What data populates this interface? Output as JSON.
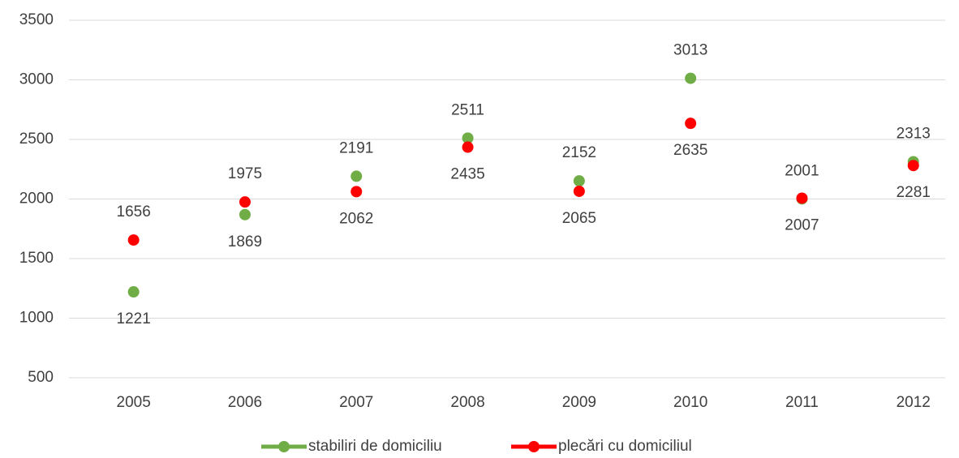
{
  "chart_data": {
    "type": "line",
    "categories": [
      "2005",
      "2006",
      "2007",
      "2008",
      "2009",
      "2010",
      "2011",
      "2012"
    ],
    "series": [
      {
        "name": "stabiliri de domiciliu",
        "color": "#70ad47",
        "values": [
          1221,
          1869,
          2191,
          2511,
          2152,
          3013,
          2001,
          2313
        ]
      },
      {
        "name": "plecări cu domiciliul",
        "color": "#ff0000",
        "values": [
          1656,
          1975,
          2062,
          2435,
          2065,
          2635,
          2007,
          2281
        ]
      }
    ],
    "ylim": [
      500,
      3500
    ],
    "yticks": [
      500,
      1000,
      1500,
      2000,
      2500,
      3000,
      3500
    ],
    "grid": true,
    "legend": "bottom"
  }
}
